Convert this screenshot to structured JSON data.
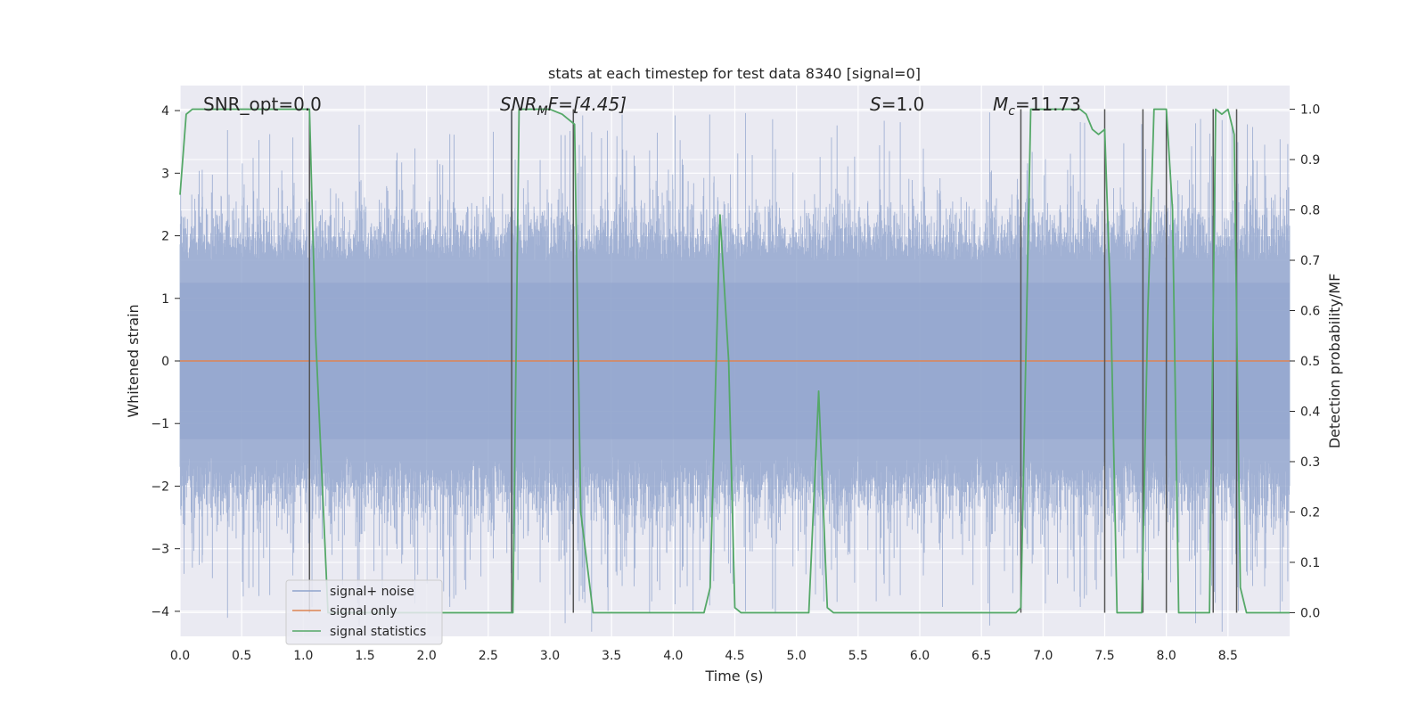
{
  "chart_data": {
    "type": "line",
    "title": "stats at each timestep for test data 8340 [signal=0]",
    "xlabel": "Time (s)",
    "ylabel": "Whitened strain",
    "y2label": "Detection probability/MF",
    "xlim": [
      0.0,
      9.0
    ],
    "ylim": [
      -4.4,
      4.4
    ],
    "y2lim": [
      -0.047,
      1.047
    ],
    "xticks": [
      "0.0",
      "0.5",
      "1.0",
      "1.5",
      "2.0",
      "2.5",
      "3.0",
      "3.5",
      "4.0",
      "4.5",
      "5.0",
      "5.5",
      "6.0",
      "6.5",
      "7.0",
      "7.5",
      "8.0",
      "8.5"
    ],
    "yticks": [
      "4",
      "3",
      "2",
      "1",
      "0",
      "−1",
      "−2",
      "−3",
      "−4"
    ],
    "y2ticks": [
      "1.0",
      "0.9",
      "0.8",
      "0.7",
      "0.6",
      "0.5",
      "0.4",
      "0.3",
      "0.2",
      "0.1",
      "0.0"
    ],
    "grid": true,
    "legend_position": "lower-left",
    "annotations": {
      "snr_opt": "SNR_opt=0.0",
      "snr_mf_base": "SNR",
      "snr_mf_sub": "M",
      "snr_mf_rest": "F=[4.45]",
      "s_italic": "S",
      "s_rest": "=1.0",
      "mc_base": "M",
      "mc_sub": "c",
      "mc_rest": "=11.73"
    },
    "series": [
      {
        "name": "signal+ noise",
        "color": "#8fa3cc",
        "envelope_note": "dense noise, amplitude roughly ±1.6 with spikes to ±3.9",
        "amplitude_core": 1.6,
        "amplitude_peak": 4.0
      },
      {
        "name": "signal only",
        "color": "#dd8452",
        "x": [
          0.0,
          9.0
        ],
        "y": [
          0.0,
          0.0
        ]
      },
      {
        "name": "signal statistics",
        "color": "#55a868",
        "x": [
          0.0,
          0.05,
          0.1,
          0.2,
          0.3,
          0.5,
          0.7,
          0.9,
          1.0,
          1.05,
          1.1,
          1.2,
          1.3,
          1.5,
          2.0,
          2.5,
          2.65,
          2.7,
          2.75,
          2.8,
          3.0,
          3.1,
          3.2,
          3.25,
          3.35,
          3.5,
          4.0,
          4.25,
          4.3,
          4.38,
          4.45,
          4.5,
          4.55,
          5.0,
          5.1,
          5.18,
          5.25,
          5.3,
          6.5,
          6.78,
          6.82,
          6.9,
          7.0,
          7.3,
          7.35,
          7.4,
          7.45,
          7.5,
          7.55,
          7.6,
          7.7,
          7.8,
          7.85,
          7.9,
          7.95,
          8.0,
          8.05,
          8.1,
          8.2,
          8.35,
          8.4,
          8.45,
          8.5,
          8.55,
          8.6,
          8.65,
          8.7,
          8.8,
          9.0
        ],
        "y": [
          0.83,
          0.99,
          1.0,
          1.0,
          1.0,
          1.0,
          1.0,
          1.0,
          1.0,
          1.0,
          0.55,
          0.0,
          0.0,
          0.0,
          0.0,
          0.0,
          0.0,
          0.0,
          1.0,
          1.0,
          1.0,
          0.99,
          0.97,
          0.2,
          0.0,
          0.0,
          0.0,
          0.0,
          0.05,
          0.79,
          0.5,
          0.01,
          0.0,
          0.0,
          0.0,
          0.44,
          0.01,
          0.0,
          0.0,
          0.0,
          0.01,
          1.0,
          1.0,
          1.0,
          0.99,
          0.96,
          0.95,
          0.96,
          0.6,
          0.0,
          0.0,
          0.0,
          0.6,
          1.0,
          1.0,
          1.0,
          0.8,
          0.0,
          0.0,
          0.0,
          1.0,
          0.99,
          1.0,
          0.95,
          0.05,
          0.0,
          0.0,
          0.0,
          0.0
        ]
      }
    ],
    "vertical_markers": [
      {
        "x": 1.05,
        "y_from": 0.0,
        "y_to": 1.0
      },
      {
        "x": 2.69,
        "y_from": 0.0,
        "y_to": 1.0
      },
      {
        "x": 3.19,
        "y_from": 0.0,
        "y_to": 1.0
      },
      {
        "x": 6.82,
        "y_from": 0.0,
        "y_to": 1.0
      },
      {
        "x": 7.5,
        "y_from": 0.0,
        "y_to": 1.0
      },
      {
        "x": 7.81,
        "y_from": 0.0,
        "y_to": 1.0
      },
      {
        "x": 8.0,
        "y_from": 0.0,
        "y_to": 1.0
      },
      {
        "x": 8.38,
        "y_from": 0.0,
        "y_to": 1.0
      },
      {
        "x": 8.57,
        "y_from": 0.0,
        "y_to": 1.0
      }
    ]
  }
}
